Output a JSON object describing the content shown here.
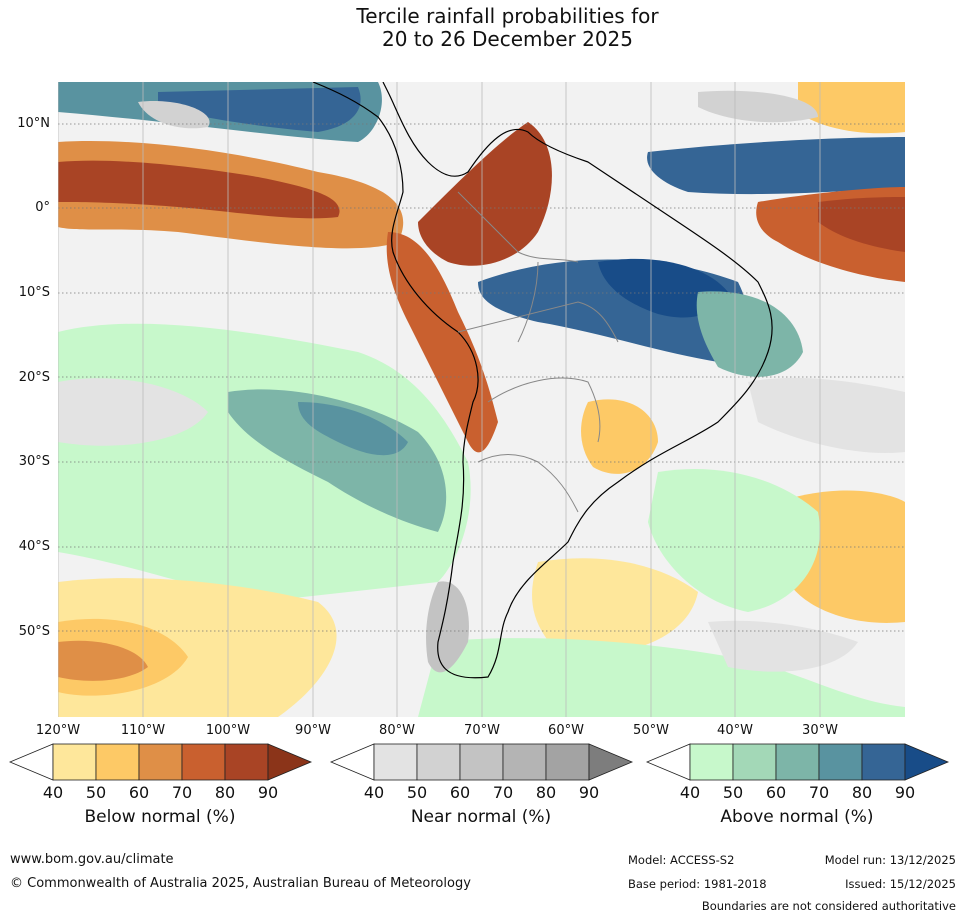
{
  "title": {
    "line1": "Tercile rainfall probabilities for",
    "line2": "20 to 26 December 2025"
  },
  "axes": {
    "lat_labels": [
      "10°N",
      "0°",
      "10°S",
      "20°S",
      "30°S",
      "40°S",
      "50°S"
    ],
    "lon_labels": [
      "120°W",
      "110°W",
      "100°W",
      "90°W",
      "80°W",
      "70°W",
      "60°W",
      "50°W",
      "40°W",
      "30°W"
    ]
  },
  "colorbars": [
    {
      "label": "Below normal (%)",
      "ticks": [
        "40",
        "50",
        "60",
        "70",
        "80",
        "90"
      ],
      "colors": [
        "#ffffff",
        "#fee79b",
        "#fdc966",
        "#df8f47",
        "#c9602f",
        "#a94425",
        "#8b3419"
      ]
    },
    {
      "label": "Near normal (%)",
      "ticks": [
        "40",
        "50",
        "60",
        "70",
        "80",
        "90"
      ],
      "colors": [
        "#ffffff",
        "#e3e3e3",
        "#d2d2d2",
        "#c3c3c3",
        "#b4b4b4",
        "#a3a3a3",
        "#7d7d7d"
      ]
    },
    {
      "label": "Above normal (%)",
      "ticks": [
        "40",
        "50",
        "60",
        "70",
        "80",
        "90"
      ],
      "colors": [
        "#ffffff",
        "#c7f8cb",
        "#a3d8b7",
        "#7db5a8",
        "#5993a0",
        "#356595",
        "#184c88"
      ]
    }
  ],
  "footer": {
    "url": "www.bom.gov.au/climate",
    "copyright": "© Commonwealth of Australia 2025, Australian Bureau of Meteorology",
    "model": "Model: ACCESS-S2",
    "base_period": "Base period: 1981-2018",
    "model_run": "Model run: 13/12/2025",
    "issued": "Issued: 15/12/2025",
    "disclaimer": "Boundaries are not considered authoritative"
  }
}
